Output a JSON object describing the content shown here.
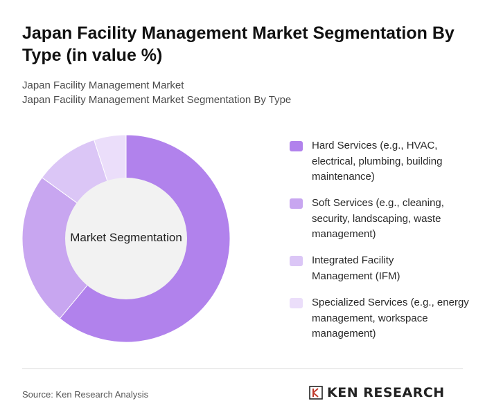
{
  "title": "Japan Facility Management Market Segmentation By Type (in value %)",
  "subtitle_lines": [
    "Japan Facility Management Market",
    "Japan Facility Management Market Segmentation By Type"
  ],
  "center_label": "Market Segmentation",
  "chart_data": {
    "type": "pie",
    "variant": "donut",
    "categories": [
      "Hard Services (e.g., HVAC, electrical, plumbing, building maintenance)",
      "Soft Services (e.g., cleaning, security, landscaping, waste management)",
      "Integrated Facility Management (IFM)",
      "Specialized Services (e.g., energy management, workspace management)"
    ],
    "values": [
      61,
      24,
      10,
      5
    ],
    "colors": [
      "#b182ec",
      "#c8a6f0",
      "#dbc6f6",
      "#ebdefa"
    ],
    "legend_placement": "right"
  },
  "legend_lines": [
    [
      "Hard Services (e.g., HVAC,",
      "electrical, plumbing, building",
      "maintenance)"
    ],
    [
      "Soft Services (e.g., cleaning,",
      "security, landscaping, waste",
      "management)"
    ],
    [
      "Integrated Facility",
      "Management (IFM)"
    ],
    [
      "Specialized Services (e.g., energy",
      "management, workspace",
      "management)"
    ]
  ],
  "footer": {
    "source": "Source: Ken Research Analysis",
    "logo_text": "KEN RESEARCH"
  },
  "colors": {
    "donut_hole": "#f2f2f2",
    "divider": "#d9d9d9"
  }
}
